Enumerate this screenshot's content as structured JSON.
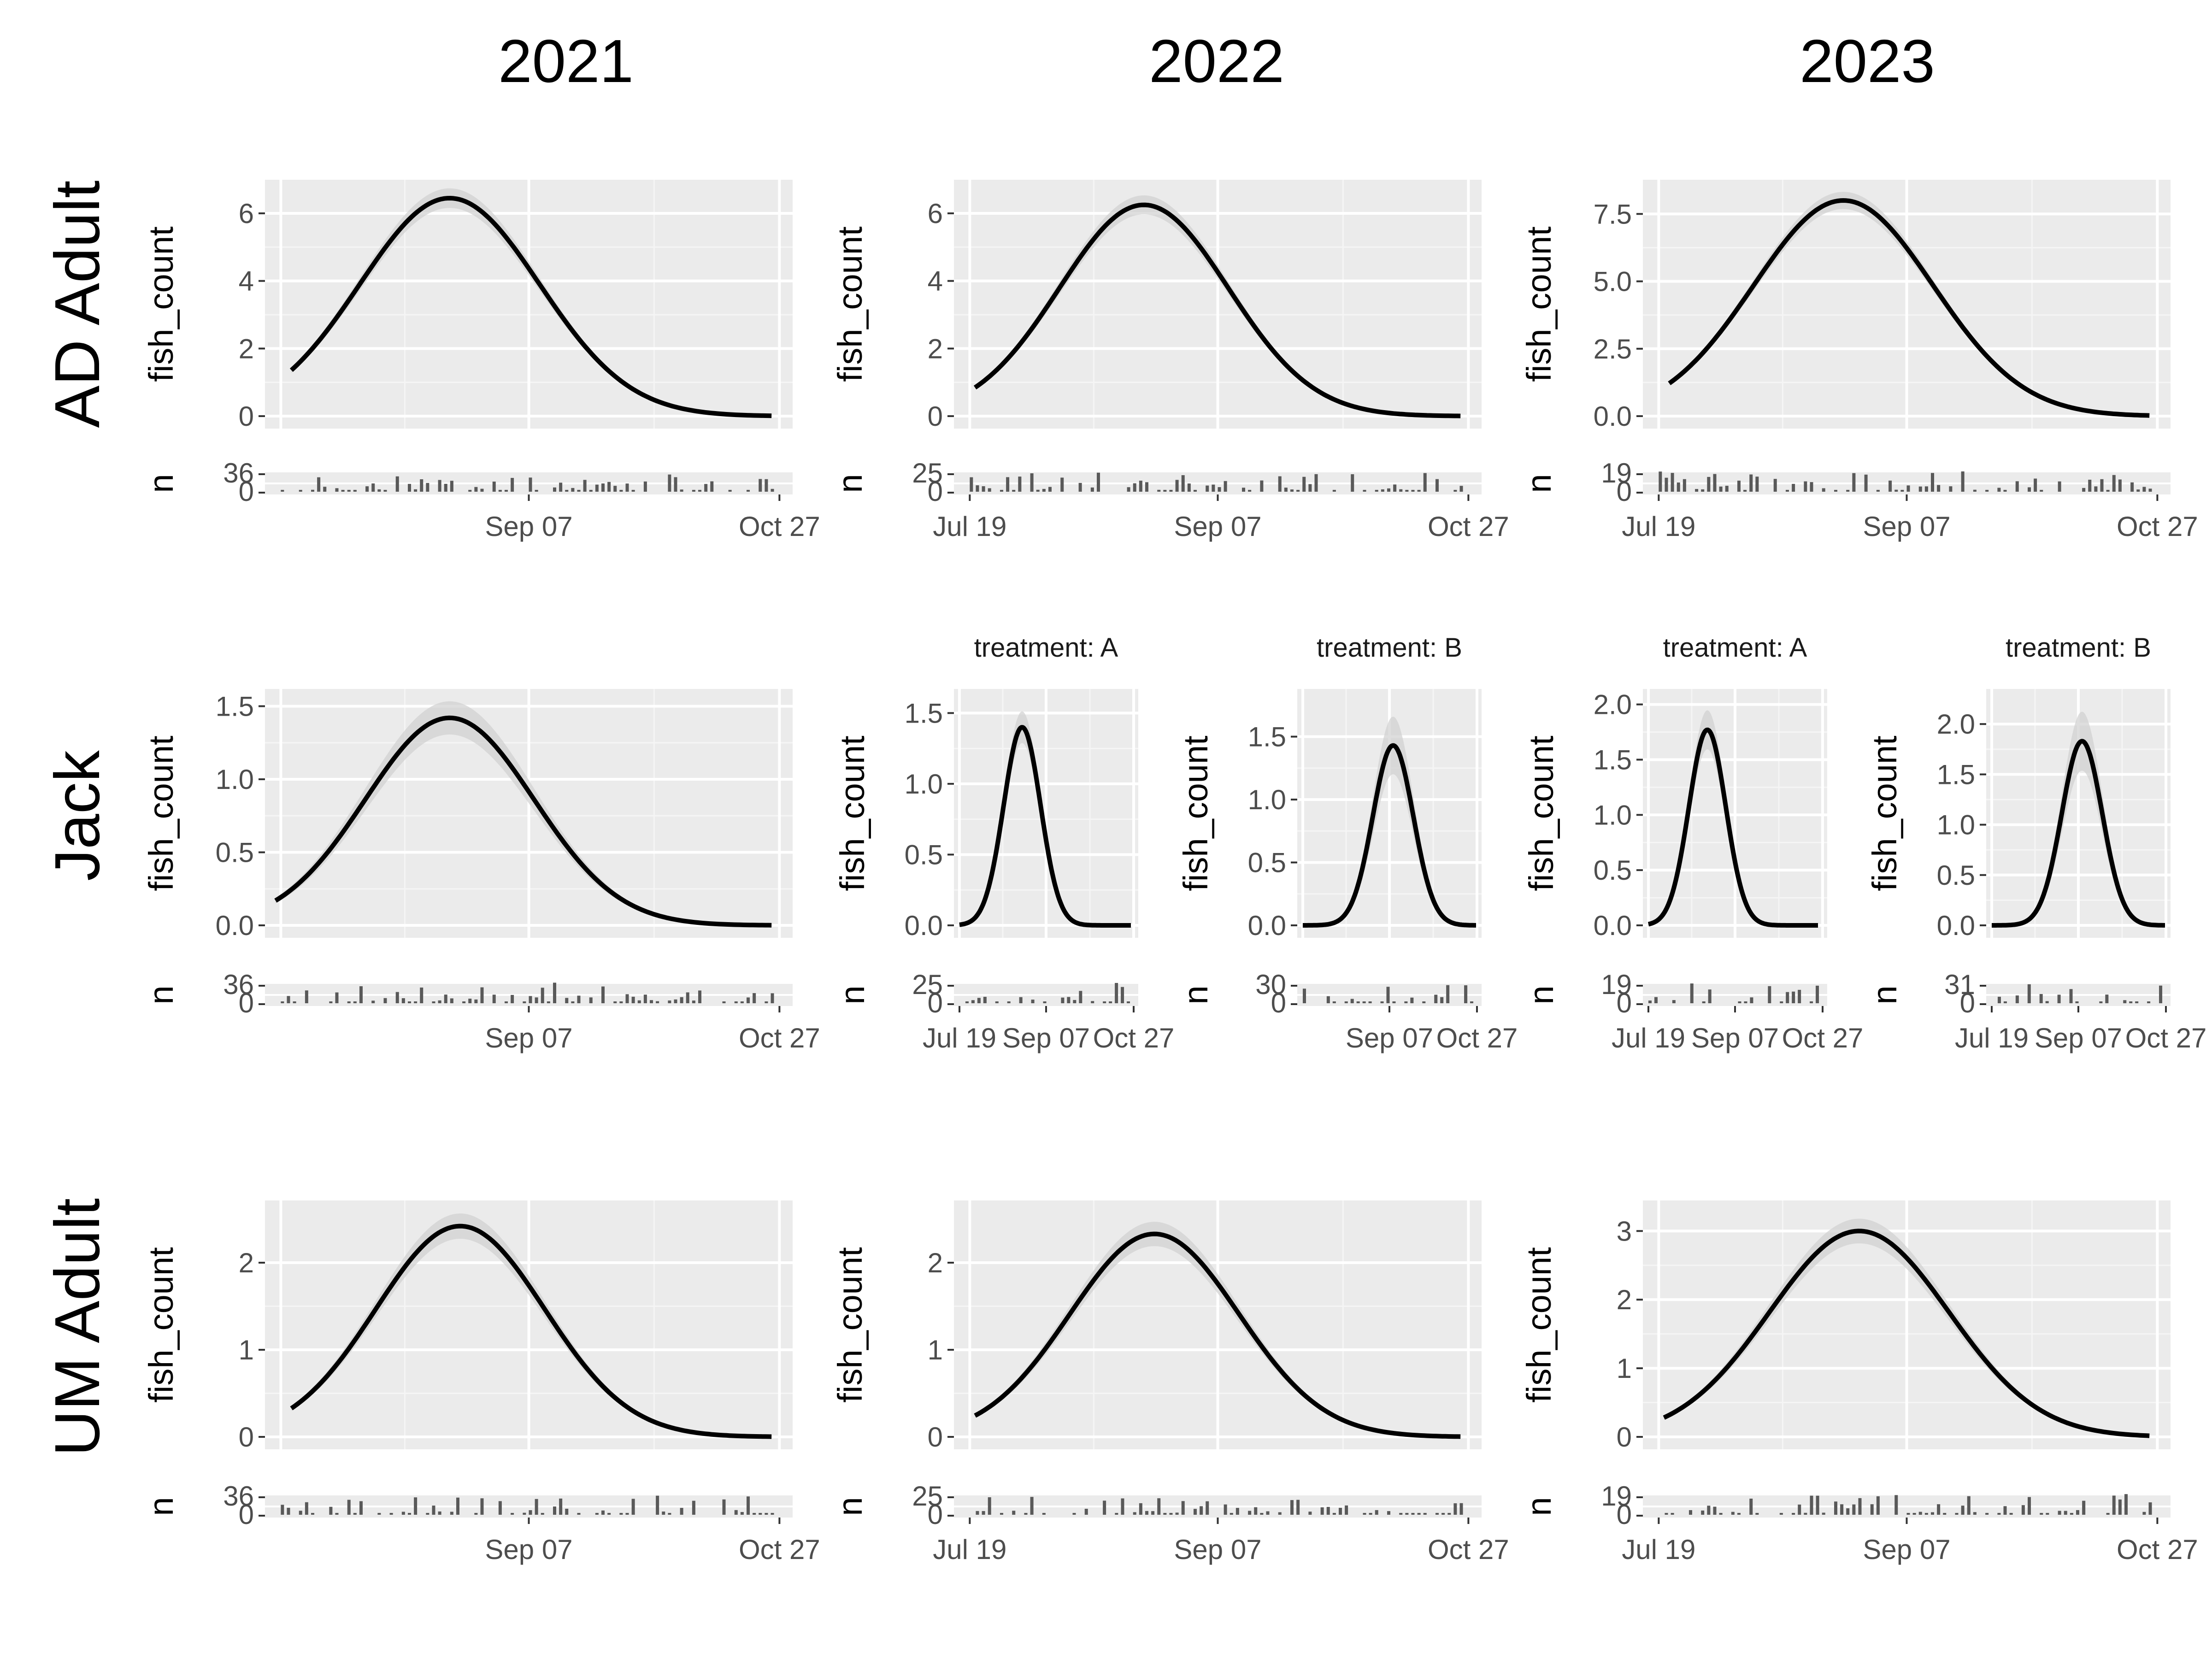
{
  "chart_data": {
    "type": "line",
    "column_labels": [
      "2021",
      "2022",
      "2023"
    ],
    "row_labels": [
      "AD Adult",
      "Jack",
      "UM Adult"
    ],
    "y_axis_label": "fish_count",
    "count_axis_label": "n",
    "x_tick_labels": [
      "Jul 19",
      "Sep 07",
      "Oct 27"
    ],
    "panels": [
      {
        "id": "ad-2021",
        "row": 0,
        "col": 0,
        "ylim": [
          0,
          6.7
        ],
        "yticks": [
          "0",
          "2",
          "4",
          "6"
        ],
        "peak": 6.45,
        "peak_frac": 0.35,
        "sd_frac": 0.17,
        "start_frac": 0.05,
        "end_frac": 0.96,
        "band": 0.045,
        "n_max": "36",
        "n_ticks": [
          "36",
          "0"
        ],
        "x_ticks_shown": [
          1,
          2
        ],
        "seed": 11
      },
      {
        "id": "ad-2022",
        "row": 0,
        "col": 1,
        "ylim": [
          0,
          6.7
        ],
        "yticks": [
          "0",
          "2",
          "4",
          "6"
        ],
        "peak": 6.25,
        "peak_frac": 0.36,
        "sd_frac": 0.16,
        "start_frac": 0.04,
        "end_frac": 0.96,
        "band": 0.045,
        "n_max": "25",
        "n_ticks": [
          "25",
          "0"
        ],
        "x_ticks_shown": [
          0,
          1,
          2
        ],
        "seed": 23
      },
      {
        "id": "ad-2023",
        "row": 0,
        "col": 2,
        "ylim": [
          0,
          8.4
        ],
        "yticks": [
          "0.0",
          "2.5",
          "5.0",
          "7.5"
        ],
        "peak": 8.0,
        "peak_frac": 0.38,
        "sd_frac": 0.17,
        "start_frac": 0.05,
        "end_frac": 0.96,
        "band": 0.04,
        "n_max": "19",
        "n_ticks": [
          "19",
          "0"
        ],
        "x_ticks_shown": [
          0,
          1,
          2
        ],
        "seed": 37
      },
      {
        "id": "jack-2021",
        "row": 1,
        "col": 0,
        "ylim": [
          0,
          1.55
        ],
        "yticks": [
          "0.0",
          "0.5",
          "1.0",
          "1.5"
        ],
        "peak": 1.42,
        "peak_frac": 0.35,
        "sd_frac": 0.16,
        "start_frac": 0.02,
        "end_frac": 0.96,
        "band": 0.08,
        "n_max": "36",
        "n_ticks": [
          "36",
          "0"
        ],
        "x_ticks_shown": [
          1,
          2
        ],
        "seed": 41
      },
      {
        "id": "jack-2022-a",
        "row": 1,
        "col": 1,
        "strip": "treatment: A",
        "ylim": [
          0,
          1.6
        ],
        "yticks": [
          "0.0",
          "0.5",
          "1.0",
          "1.5"
        ],
        "peak": 1.4,
        "peak_frac": 0.37,
        "sd_frac": 0.1,
        "start_frac": 0.03,
        "end_frac": 0.96,
        "band": 0.08,
        "n_max": "25",
        "n_ticks": [
          "25",
          "0"
        ],
        "x_ticks_shown": [
          0,
          1,
          2
        ],
        "seed": 53
      },
      {
        "id": "jack-2022-b",
        "row": 1,
        "col": 1,
        "strip": "treatment: B",
        "ylim": [
          0,
          1.8
        ],
        "yticks": [
          "0.0",
          "0.5",
          "1.0",
          "1.5"
        ],
        "peak": 1.43,
        "peak_frac": 0.52,
        "sd_frac": 0.11,
        "start_frac": 0.03,
        "end_frac": 0.97,
        "band": 0.16,
        "n_max": "30",
        "n_ticks": [
          "30",
          "0"
        ],
        "x_ticks_shown": [
          1,
          2
        ],
        "seed": 67
      },
      {
        "id": "jack-2023-a",
        "row": 1,
        "col": 2,
        "strip": "treatment: A",
        "ylim": [
          0,
          2.05
        ],
        "yticks": [
          "0.0",
          "0.5",
          "1.0",
          "1.5",
          "2.0"
        ],
        "peak": 1.77,
        "peak_frac": 0.35,
        "sd_frac": 0.1,
        "start_frac": 0.03,
        "end_frac": 0.95,
        "band": 0.1,
        "n_max": "19",
        "n_ticks": [
          "19",
          "0"
        ],
        "x_ticks_shown": [
          0,
          1,
          2
        ],
        "seed": 79
      },
      {
        "id": "jack-2023-b",
        "row": 1,
        "col": 2,
        "strip": "treatment: B",
        "ylim": [
          0,
          2.25
        ],
        "yticks": [
          "0.0",
          "0.5",
          "1.0",
          "1.5",
          "2.0"
        ],
        "peak": 1.83,
        "peak_frac": 0.52,
        "sd_frac": 0.11,
        "start_frac": 0.03,
        "end_frac": 0.97,
        "band": 0.16,
        "n_max": "31",
        "n_ticks": [
          "31",
          "0"
        ],
        "x_ticks_shown": [
          0,
          1,
          2
        ],
        "seed": 83
      },
      {
        "id": "um-2021",
        "row": 2,
        "col": 0,
        "ylim": [
          0,
          2.6
        ],
        "yticks": [
          "0",
          "1",
          "2"
        ],
        "peak": 2.42,
        "peak_frac": 0.37,
        "sd_frac": 0.16,
        "start_frac": 0.05,
        "end_frac": 0.96,
        "band": 0.06,
        "n_max": "36",
        "n_ticks": [
          "36",
          "0"
        ],
        "x_ticks_shown": [
          1,
          2
        ],
        "seed": 97
      },
      {
        "id": "um-2022",
        "row": 2,
        "col": 1,
        "ylim": [
          0,
          2.6
        ],
        "yticks": [
          "0",
          "1",
          "2"
        ],
        "peak": 2.33,
        "peak_frac": 0.38,
        "sd_frac": 0.16,
        "start_frac": 0.04,
        "end_frac": 0.96,
        "band": 0.06,
        "n_max": "25",
        "n_ticks": [
          "25",
          "0"
        ],
        "x_ticks_shown": [
          0,
          1,
          2
        ],
        "seed": 101
      },
      {
        "id": "um-2023",
        "row": 2,
        "col": 2,
        "ylim": [
          0,
          3.3
        ],
        "yticks": [
          "0",
          "1",
          "2",
          "3"
        ],
        "peak": 3.0,
        "peak_frac": 0.41,
        "sd_frac": 0.17,
        "start_frac": 0.04,
        "end_frac": 0.96,
        "band": 0.06,
        "n_max": "19",
        "n_ticks": [
          "19",
          "0"
        ],
        "x_ticks_shown": [
          0,
          1,
          2
        ],
        "seed": 113
      }
    ]
  }
}
